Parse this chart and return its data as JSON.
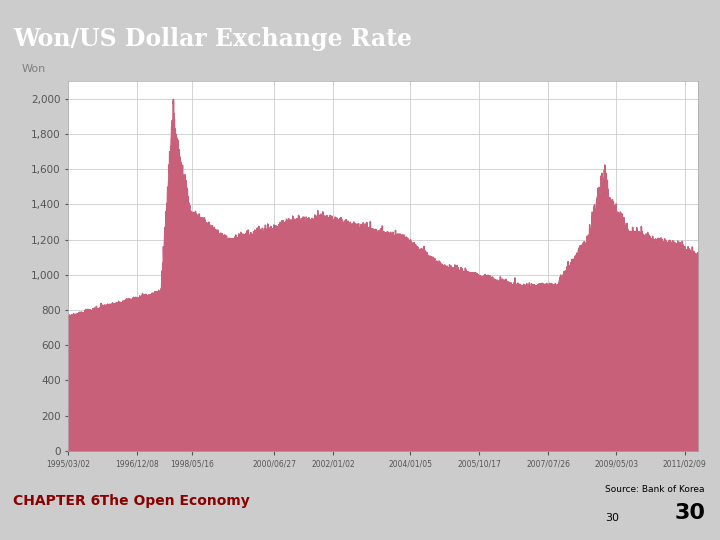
{
  "title": "Won/US Dollar Exchange Rate",
  "title_bg_color": "#0000CC",
  "title_text_color": "#FFFFFF",
  "ylabel": "Won",
  "fill_color": "#C8607A",
  "line_color": "#C8607A",
  "bg_color": "#CCCCCC",
  "plot_bg_color": "#FFFFFF",
  "ylim": [
    0,
    2100
  ],
  "yticks": [
    0,
    200,
    400,
    600,
    800,
    1000,
    1200,
    1400,
    1600,
    1800,
    2000
  ],
  "footer_chapter": "CHAPTER 6",
  "footer_title": "   The Open Economy",
  "footer_source": "Source: Bank of Korea",
  "footer_page": "30",
  "x_labels": [
    "1995/03/02",
    "1996/12/08",
    "1998/05/16",
    "2000/06/27",
    "2002/01/02",
    "2004/01/05",
    "2005/10/17",
    "2007/07/26",
    "2009/05/03",
    "2011/02/09"
  ]
}
